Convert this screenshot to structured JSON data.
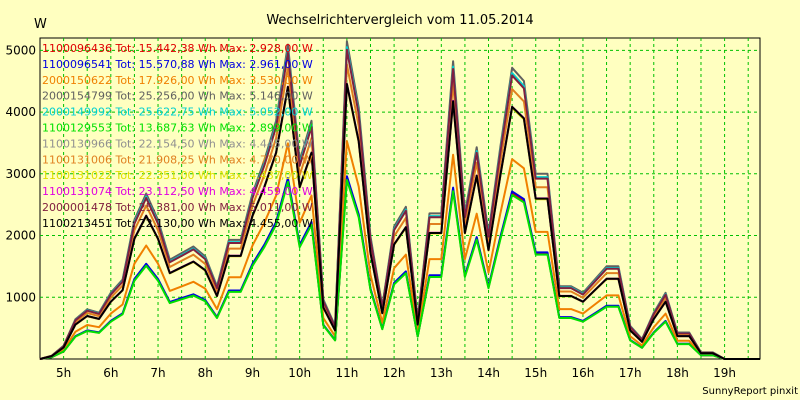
{
  "chart_data": {
    "type": "line",
    "title": "Wechselrichtervergleich vom 11.05.2014",
    "ylabel": "W",
    "xlabel": "",
    "footer": "SunnyReport pinxit",
    "ylim": [
      0,
      5200
    ],
    "yticks": [
      1000,
      2000,
      3000,
      4000,
      5000
    ],
    "x_ticks": [
      "5h",
      "6h",
      "7h",
      "8h",
      "9h",
      "10h",
      "11h",
      "12h",
      "13h",
      "14h",
      "15h",
      "16h",
      "17h",
      "18h",
      "19h"
    ],
    "x_tick_hours": [
      5,
      6,
      7,
      8,
      9,
      10,
      11,
      12,
      13,
      14,
      15,
      16,
      17,
      18,
      19
    ],
    "xlim": [
      4.5,
      19.75
    ],
    "grid": true,
    "legend_position": "top-left",
    "x": [
      4.5,
      4.75,
      5.0,
      5.25,
      5.5,
      5.75,
      6.0,
      6.25,
      6.5,
      6.75,
      7.0,
      7.25,
      7.5,
      7.75,
      8.0,
      8.25,
      8.5,
      8.75,
      9.0,
      9.25,
      9.5,
      9.75,
      10.0,
      10.25,
      10.5,
      10.75,
      11.0,
      11.25,
      11.5,
      11.75,
      12.0,
      12.25,
      12.5,
      12.75,
      13.0,
      13.25,
      13.5,
      13.75,
      14.0,
      14.25,
      14.5,
      14.75,
      15.0,
      15.25,
      15.5,
      15.75,
      16.0,
      16.25,
      16.5,
      16.75,
      17.0,
      17.25,
      17.5,
      17.75,
      18.0,
      18.25,
      18.5,
      18.75,
      19.0,
      19.25,
      19.5,
      19.75
    ],
    "base_profile": [
      0,
      0.1,
      0.4,
      1.2,
      1.5,
      1.4,
      2.0,
      2.4,
      4.2,
      5.0,
      4.2,
      3.0,
      3.2,
      3.4,
      3.1,
      2.2,
      3.6,
      3.6,
      5.0,
      6.0,
      7.2,
      9.5,
      6.0,
      7.2,
      1.8,
      1.0,
      9.6,
      7.6,
      3.7,
      1.6,
      4.0,
      4.6,
      1.2,
      4.4,
      4.4,
      9.0,
      4.4,
      6.4,
      3.8,
      6.4,
      8.8,
      8.4,
      5.6,
      5.6,
      2.2,
      2.2,
      2.0,
      2.4,
      2.8,
      2.8,
      1.0,
      0.6,
      1.4,
      2.0,
      0.8,
      0.8,
      0.2,
      0.2,
      0,
      0,
      0,
      0
    ],
    "series": [
      {
        "name": "1100096436 Tot: 15.442,38 Wh Max: 2.928,00 W",
        "color": "#e00000",
        "max": 2928
      },
      {
        "name": "1100096541 Tot: 15.570,88 Wh Max: 2.961,00 W",
        "color": "#0000e0",
        "max": 2961
      },
      {
        "name": "2000150622 Tot: 17.926,00 Wh Max: 3.530,00 W",
        "color": "#f08000",
        "max": 3530
      },
      {
        "name": "2000154799 Tot: 25.256,00 Wh Max: 5.146,00 W",
        "color": "#606060",
        "max": 5146
      },
      {
        "name": "2000149992 Tot: 25.622,75 Wh Max: 5.052,00 W",
        "color": "#00d0d0",
        "max": 5052
      },
      {
        "name": "1100129553 Tot: 13.687,63 Wh Max: 2.899,00 W",
        "color": "#00e000",
        "max": 2899
      },
      {
        "name": "1100130966 Tot: 22.154,50 Wh Max: 4.445,00 W",
        "color": "#909090",
        "max": 4445
      },
      {
        "name": "1100131006 Tot: 21.908,25 Wh Max: 4.770,00 W",
        "color": "#e08020",
        "max": 4770
      },
      {
        "name": "1100131022 Tot: 22.351,00 Wh Max: 4.437,00 W",
        "color": "#e0e000",
        "max": 4437
      },
      {
        "name": "1100131074 Tot: 23.112,50 Wh Max: 4.459,00 W",
        "color": "#e000e0",
        "max": 4459
      },
      {
        "name": "2000001478 Tot: 25.381,00 Wh Max: 5.011,00 W",
        "color": "#802040",
        "max": 5011
      },
      {
        "name": "1100213451 Tot: 22.130,00 Wh Max: 4.455,00 W",
        "color": "#000000",
        "max": 4455
      }
    ]
  }
}
